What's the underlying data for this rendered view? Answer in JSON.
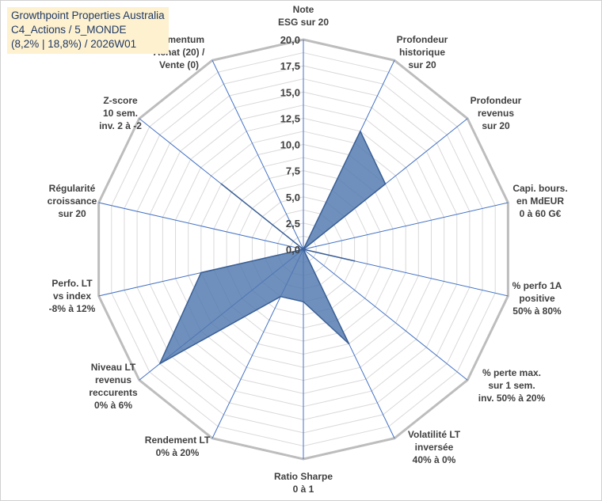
{
  "title": {
    "line1": "Growthpoint Properties Australia",
    "line2": "C4_Actions / 5_MONDE",
    "line3": "(8,2% | 18,8%) / 2026W01"
  },
  "chart_data": {
    "type": "radar",
    "title": "Growthpoint Properties Australia",
    "rmin": 0,
    "rmax": 20,
    "ticks": [
      "0,0",
      "2,5",
      "5,0",
      "7,5",
      "10,0",
      "12,5",
      "15,0",
      "17,5",
      "20,0"
    ],
    "tick_values": [
      0,
      2.5,
      5,
      7.5,
      10,
      12.5,
      15,
      17.5,
      20
    ],
    "grid_step": 1.25,
    "axes": [
      "Note\nESG sur 20",
      "Profondeur\nhistorique\nsur 20",
      "Profondeur\nrevenus\nsur 20",
      "Capi. bours.\nen MdEUR\n0 à 60 G€",
      "% perfo 1A\npositive\n50% à 80%",
      "% perte max.\nsur 1 sem.\ninv. 50% à 20%",
      "Volatilité LT\ninversée\n40% à 0%",
      "Ratio Sharpe\n0 à 1",
      "Rendement LT\n0% à 20%",
      "Niveau LT\nrevenus\nreccurents\n0% à 6%",
      "Perfo. LT\nvs index\n-8% à 12%",
      "Régularité\ncroissance\nsur 20",
      "Z-score\n10 sem.\ninv. 2 à -2",
      "Momentum\nAchat (20) /\nVente (0)"
    ],
    "series": [
      {
        "name": "Growthpoint Properties Australia",
        "color": "#4f77af",
        "values": [
          0,
          12.5,
          10,
          0,
          5,
          0,
          10,
          5,
          5,
          17.5,
          10,
          0,
          10,
          0
        ]
      }
    ]
  }
}
